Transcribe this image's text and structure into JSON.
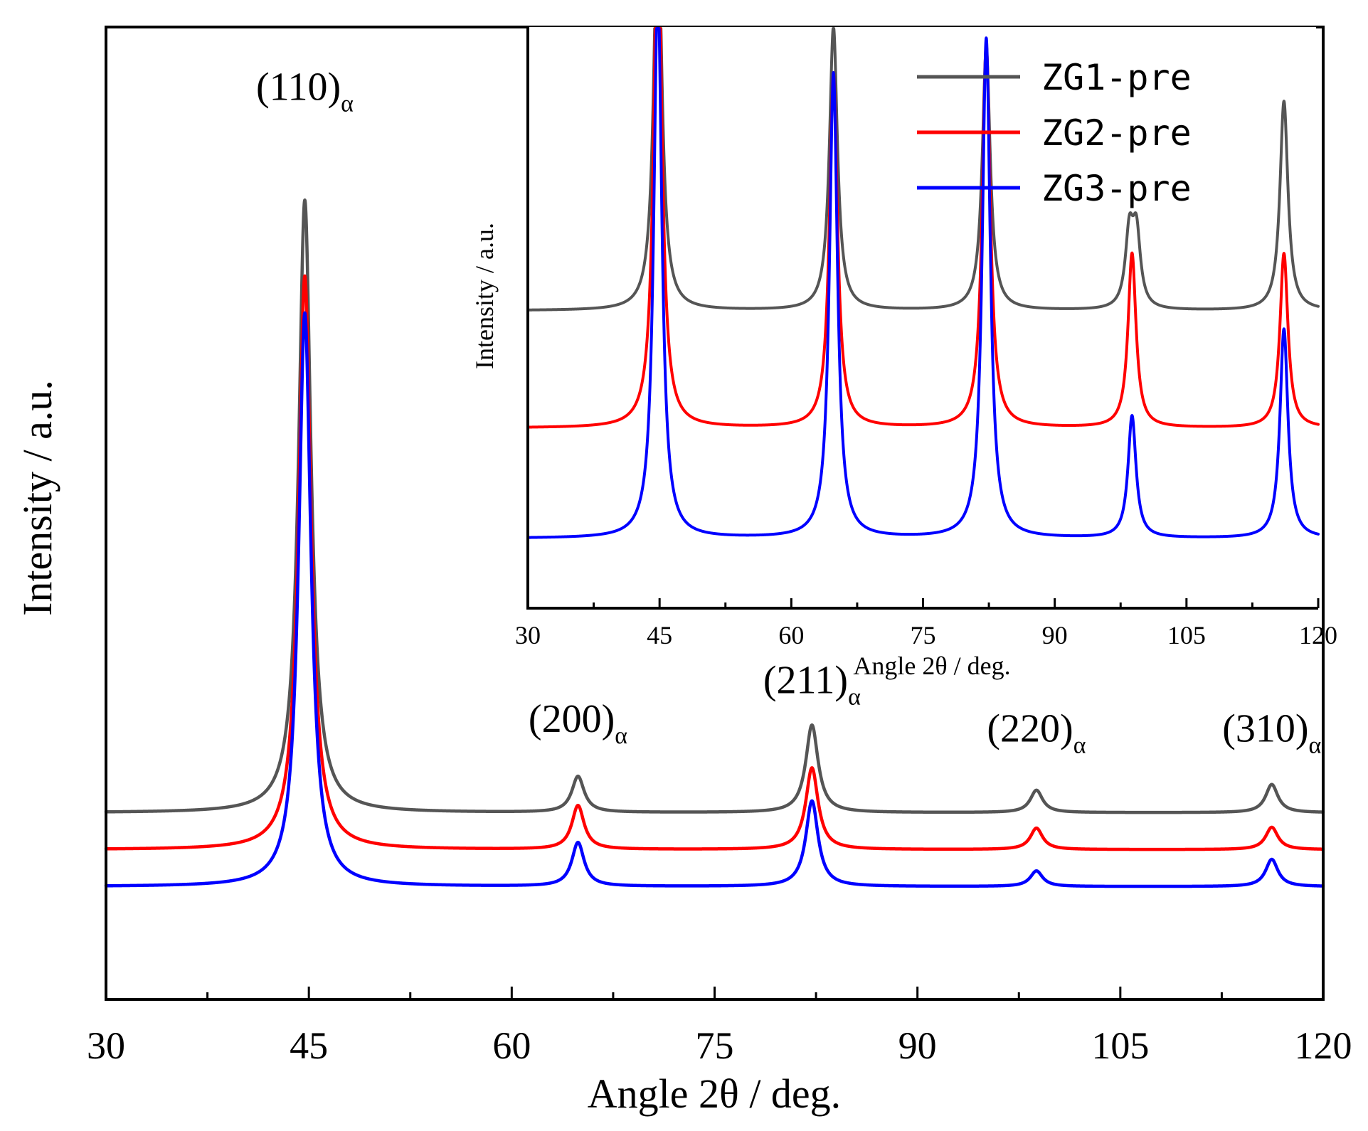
{
  "chart_data": [
    {
      "id": "main",
      "type": "line",
      "title": "",
      "xlabel": "Angle 2θ / deg.",
      "ylabel": "Intensity / a.u.",
      "xlim": [
        30,
        120
      ],
      "ylim": [
        0,
        100
      ],
      "xticks": [
        30,
        45,
        60,
        75,
        90,
        105,
        120
      ],
      "grid": false,
      "peak_width": 0.55,
      "series": [
        {
          "name": "ZG1-pre",
          "color": "#555555",
          "baseline": 19.2,
          "peaks": [
            {
              "x": 44.7,
              "height": 63.0
            },
            {
              "x": 64.9,
              "height": 3.7
            },
            {
              "x": 82.2,
              "height": 9.0
            },
            {
              "x": 98.8,
              "height": 2.3
            },
            {
              "x": 116.2,
              "height": 2.9
            }
          ]
        },
        {
          "name": "ZG2-pre",
          "color": "#ff0000",
          "baseline": 15.4,
          "peaks": [
            {
              "x": 44.7,
              "height": 59.0
            },
            {
              "x": 64.9,
              "height": 4.5
            },
            {
              "x": 82.2,
              "height": 8.4
            },
            {
              "x": 98.8,
              "height": 2.2
            },
            {
              "x": 116.2,
              "height": 2.3
            }
          ]
        },
        {
          "name": "ZG3-pre",
          "color": "#0000ff",
          "baseline": 11.6,
          "peaks": [
            {
              "x": 44.7,
              "height": 59.0
            },
            {
              "x": 64.9,
              "height": 4.5
            },
            {
              "x": 82.2,
              "height": 8.8
            },
            {
              "x": 98.8,
              "height": 1.6
            },
            {
              "x": 116.2,
              "height": 2.8
            }
          ]
        }
      ],
      "annotations": [
        {
          "main": "(110)",
          "sub": "α",
          "x": 44.7,
          "y": 92.5
        },
        {
          "main": "(200)",
          "sub": "α",
          "x": 64.9,
          "y": 27.5
        },
        {
          "main": "(211)",
          "sub": "α",
          "x": 82.2,
          "y": 31.5
        },
        {
          "main": "(220)",
          "sub": "α",
          "x": 98.8,
          "y": 26.5
        },
        {
          "main": "(310)",
          "sub": "α",
          "x": 116.2,
          "y": 26.5
        }
      ]
    },
    {
      "id": "inset",
      "type": "line",
      "title": "",
      "xlabel": "Angle 2θ / deg.",
      "ylabel": "Intensity / a.u.",
      "xlim": [
        30,
        120
      ],
      "ylim": [
        0,
        100
      ],
      "xticks": [
        30,
        45,
        60,
        75,
        90,
        105,
        120
      ],
      "grid": false,
      "peak_width": 0.55,
      "legend": "top-right",
      "series": [
        {
          "name": "ZG1-pre",
          "color": "#555555",
          "baseline": 51.2,
          "peaks": [
            {
              "x": 44.8,
              "height": 70.0
            },
            {
              "x": 64.8,
              "height": 48.8
            },
            {
              "x": 82.2,
              "height": 45.0
            },
            {
              "x": 98.5,
              "height": 12.4
            },
            {
              "x": 99.3,
              "height": 12.4
            },
            {
              "x": 116.1,
              "height": 36.0
            }
          ]
        },
        {
          "name": "ZG2-pre",
          "color": "#ff0000",
          "baseline": 31.0,
          "peaks": [
            {
              "x": 44.8,
              "height": 90.0
            },
            {
              "x": 64.8,
              "height": 61.0
            },
            {
              "x": 82.2,
              "height": 66.0
            },
            {
              "x": 98.8,
              "height": 30.0
            },
            {
              "x": 116.1,
              "height": 30.0
            }
          ]
        },
        {
          "name": "ZG3-pre",
          "color": "#0000ff",
          "baseline": 12.0,
          "peaks": [
            {
              "x": 44.8,
              "height": 95.0
            },
            {
              "x": 64.8,
              "height": 80.0
            },
            {
              "x": 82.2,
              "height": 86.0
            },
            {
              "x": 98.8,
              "height": 21.0
            },
            {
              "x": 116.1,
              "height": 36.0
            }
          ]
        }
      ]
    }
  ]
}
